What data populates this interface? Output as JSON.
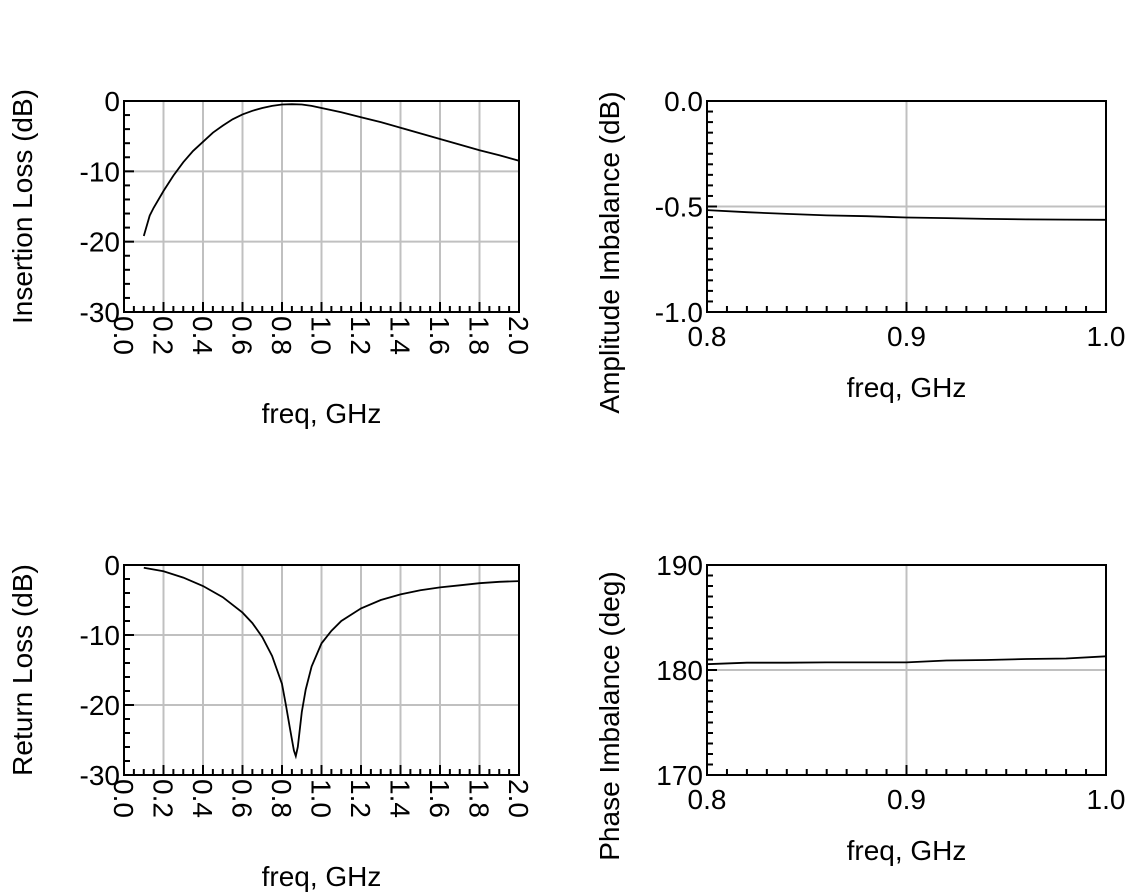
{
  "chart_data": [
    {
      "id": "insertion-loss",
      "type": "line",
      "xlabel": "freq, GHz",
      "ylabel": "Insertion Loss (dB)",
      "xlim": [
        0.0,
        2.0
      ],
      "ylim": [
        -30,
        0
      ],
      "xticks": [
        "0.0",
        "0.2",
        "0.4",
        "0.6",
        "0.8",
        "1.0",
        "1.2",
        "1.4",
        "1.6",
        "1.8",
        "2.0"
      ],
      "yticks": [
        "0",
        "-10",
        "-20",
        "-30"
      ],
      "xtick_values": [
        0.0,
        0.2,
        0.4,
        0.6,
        0.8,
        1.0,
        1.2,
        1.4,
        1.6,
        1.8,
        2.0
      ],
      "ytick_values": [
        0,
        -10,
        -20,
        -30
      ],
      "xminor": 0.05,
      "yminor": 2,
      "xgrid": [
        0.2,
        0.4,
        0.6,
        0.8,
        1.0,
        1.2,
        1.4,
        1.6,
        1.8
      ],
      "ygrid": [
        -10,
        -20
      ],
      "xtick_rotated": true,
      "series": [
        {
          "x": [
            0.1,
            0.13,
            0.15,
            0.2,
            0.25,
            0.3,
            0.35,
            0.4,
            0.45,
            0.5,
            0.55,
            0.6,
            0.65,
            0.7,
            0.75,
            0.8,
            0.85,
            0.9,
            0.95,
            1.0,
            1.1,
            1.2,
            1.3,
            1.4,
            1.5,
            1.6,
            1.7,
            1.8,
            1.9,
            2.0
          ],
          "y": [
            -19.2,
            -16.3,
            -15.2,
            -12.8,
            -10.6,
            -8.7,
            -7.1,
            -5.8,
            -4.5,
            -3.5,
            -2.6,
            -1.9,
            -1.4,
            -1.0,
            -0.7,
            -0.5,
            -0.45,
            -0.5,
            -0.7,
            -1.0,
            -1.6,
            -2.3,
            -3.0,
            -3.8,
            -4.6,
            -5.4,
            -6.2,
            -7.0,
            -7.7,
            -8.5
          ]
        }
      ]
    },
    {
      "id": "amplitude-imbalance",
      "type": "line",
      "xlabel": "freq, GHz",
      "ylabel": "Amplitude Imbalance (dB)",
      "xlim": [
        0.8,
        1.0
      ],
      "ylim": [
        -1.0,
        0.0
      ],
      "xticks": [
        "0.8",
        "0.9",
        "1.0"
      ],
      "yticks": [
        "0.0",
        "-0.5",
        "-1.0"
      ],
      "xtick_values": [
        0.8,
        0.9,
        1.0
      ],
      "ytick_values": [
        0.0,
        -0.5,
        -1.0
      ],
      "xminor": 0.01,
      "yminor": 0.05,
      "xgrid": [
        0.9
      ],
      "ygrid": [
        -0.5
      ],
      "xtick_rotated": false,
      "series": [
        {
          "x": [
            0.8,
            0.82,
            0.84,
            0.86,
            0.88,
            0.9,
            0.92,
            0.94,
            0.96,
            0.98,
            1.0
          ],
          "y": [
            -0.517,
            -0.527,
            -0.535,
            -0.542,
            -0.546,
            -0.552,
            -0.555,
            -0.559,
            -0.561,
            -0.562,
            -0.563
          ]
        }
      ]
    },
    {
      "id": "return-loss",
      "type": "line",
      "xlabel": "freq, GHz",
      "ylabel": "Return Loss (dB)",
      "xlim": [
        0.0,
        2.0
      ],
      "ylim": [
        -30,
        0
      ],
      "xticks": [
        "0.0",
        "0.2",
        "0.4",
        "0.6",
        "0.8",
        "1.0",
        "1.2",
        "1.4",
        "1.6",
        "1.8",
        "2.0"
      ],
      "yticks": [
        "0",
        "-10",
        "-20",
        "-30"
      ],
      "xtick_values": [
        0.0,
        0.2,
        0.4,
        0.6,
        0.8,
        1.0,
        1.2,
        1.4,
        1.6,
        1.8,
        2.0
      ],
      "ytick_values": [
        0,
        -10,
        -20,
        -30
      ],
      "xminor": 0.05,
      "yminor": 2,
      "xgrid": [
        0.2,
        0.4,
        0.6,
        0.8,
        1.0,
        1.2,
        1.4,
        1.6,
        1.8
      ],
      "ygrid": [
        -10,
        -20
      ],
      "xtick_rotated": true,
      "series": [
        {
          "x": [
            0.1,
            0.2,
            0.3,
            0.4,
            0.5,
            0.6,
            0.65,
            0.7,
            0.75,
            0.8,
            0.82,
            0.84,
            0.86,
            0.87,
            0.88,
            0.9,
            0.92,
            0.95,
            1.0,
            1.05,
            1.1,
            1.2,
            1.3,
            1.4,
            1.5,
            1.6,
            1.7,
            1.8,
            1.9,
            2.0
          ],
          "y": [
            -0.4,
            -0.9,
            -1.8,
            -3.0,
            -4.6,
            -6.8,
            -8.3,
            -10.3,
            -13.0,
            -17.0,
            -20.0,
            -23.3,
            -26.5,
            -27.3,
            -26.0,
            -21.0,
            -17.8,
            -14.5,
            -11.2,
            -9.4,
            -8.0,
            -6.2,
            -5.0,
            -4.2,
            -3.6,
            -3.2,
            -2.9,
            -2.6,
            -2.4,
            -2.3
          ]
        }
      ]
    },
    {
      "id": "phase-imbalance",
      "type": "line",
      "xlabel": "freq, GHz",
      "ylabel": "Phase Imbalance (deg)",
      "xlim": [
        0.8,
        1.0
      ],
      "ylim": [
        170,
        190
      ],
      "xticks": [
        "0.8",
        "0.9",
        "1.0"
      ],
      "yticks": [
        "190",
        "180",
        "170"
      ],
      "xtick_values": [
        0.8,
        0.9,
        1.0
      ],
      "ytick_values": [
        190,
        180,
        170
      ],
      "xminor": 0.01,
      "yminor": 1,
      "xgrid": [
        0.9
      ],
      "ygrid": [
        180
      ],
      "xtick_rotated": false,
      "series": [
        {
          "x": [
            0.8,
            0.82,
            0.84,
            0.86,
            0.88,
            0.9,
            0.92,
            0.94,
            0.96,
            0.98,
            1.0
          ],
          "y": [
            180.55,
            180.7,
            180.7,
            180.72,
            180.72,
            180.72,
            180.9,
            180.95,
            181.05,
            181.1,
            181.3
          ]
        }
      ]
    }
  ]
}
